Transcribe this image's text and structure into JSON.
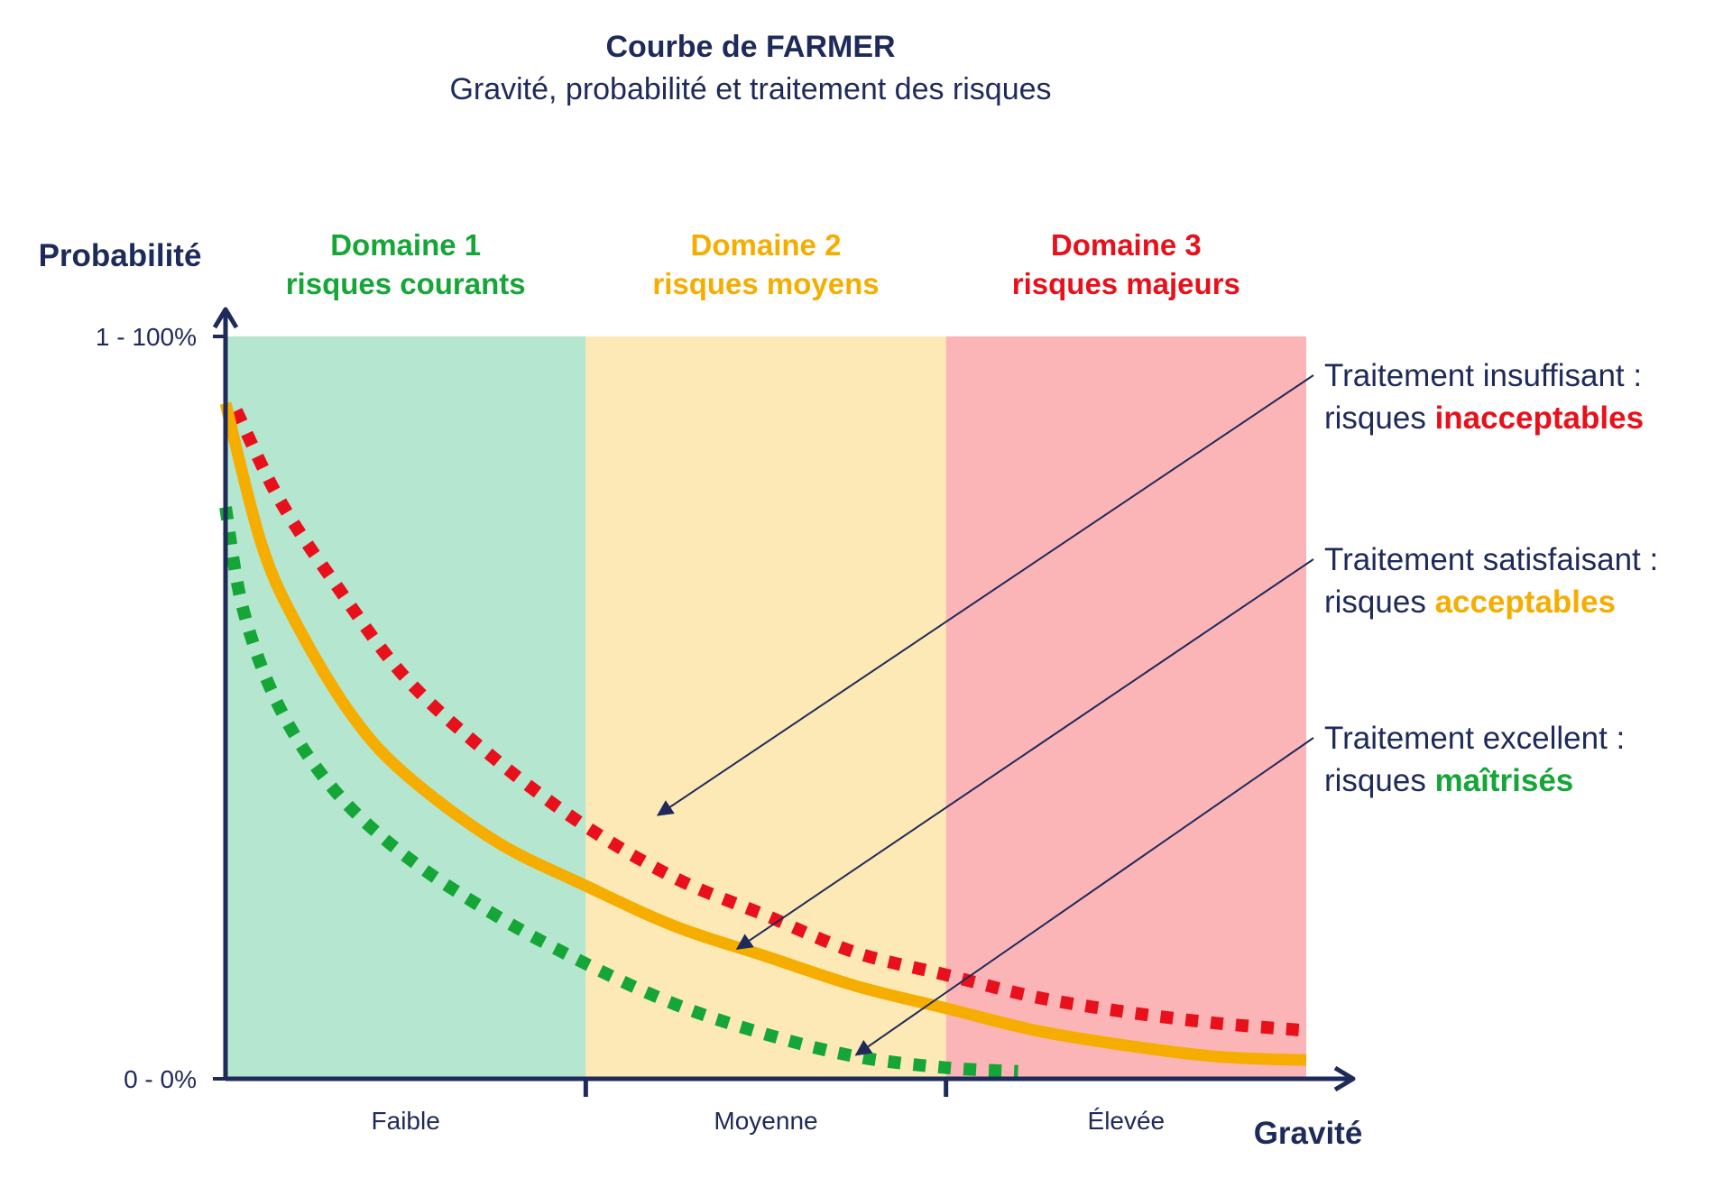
{
  "chart_data": {
    "type": "line",
    "title": "Courbe de FARMER",
    "subtitle": "Gravité, probabilité et traitement des risques",
    "xlabel": "Gravité",
    "ylabel": "Probabilité",
    "ylim": [
      0,
      100
    ],
    "xlim": [
      0,
      3
    ],
    "y_ticks": [
      {
        "value": 100,
        "label": "1 - 100%"
      },
      {
        "value": 0,
        "label": "0 - 0%"
      }
    ],
    "x_categories": [
      "Faible",
      "Moyenne",
      "Élevée"
    ],
    "domains": [
      {
        "line1": "Domaine 1",
        "line2": "risques courants",
        "range": [
          0,
          1
        ],
        "color": "#15a637",
        "fill": "#b5e6cf"
      },
      {
        "line1": "Domaine 2",
        "line2": "risques moyens",
        "range": [
          1,
          2
        ],
        "color": "#f5ad00",
        "fill": "#fde9b5"
      },
      {
        "line1": "Domaine 3",
        "line2": "risques majeurs",
        "range": [
          2,
          3
        ],
        "color": "#e8101b",
        "fill": "#fcb5b7"
      }
    ],
    "series": [
      {
        "color": "#e8101b",
        "style": "dotted",
        "x": [
          0.03,
          0.15,
          0.3,
          0.5,
          0.75,
          1.0,
          1.25,
          1.5,
          1.75,
          2.0,
          2.25,
          2.5,
          2.75,
          3.0
        ],
        "y": [
          90,
          78,
          67,
          54,
          43,
          34,
          27,
          22,
          17,
          14,
          11,
          9,
          7.5,
          6.5
        ]
      },
      {
        "color": "#f5ad00",
        "style": "solid",
        "x": [
          0.0,
          0.1,
          0.2,
          0.35,
          0.5,
          0.75,
          1.0,
          1.25,
          1.5,
          1.75,
          2.0,
          2.25,
          2.5,
          2.75,
          3.0
        ],
        "y": [
          91,
          72,
          61,
          49,
          41,
          32,
          26,
          20.5,
          16.5,
          12.5,
          9.5,
          6.5,
          4.5,
          3,
          2.5
        ]
      },
      {
        "color": "#15a637",
        "style": "dotted",
        "x": [
          0.0,
          0.05,
          0.15,
          0.3,
          0.5,
          0.75,
          1.0,
          1.25,
          1.5,
          1.75,
          2.0,
          2.2
        ],
        "y": [
          77,
          63,
          50,
          39,
          30,
          22,
          15.5,
          10,
          6,
          3,
          1.5,
          1
        ]
      }
    ],
    "annotations": [
      {
        "line1": "Traitement insuffisant :",
        "line2_prefix": "risques ",
        "line2_highlight": "inacceptables",
        "color": "#e8101b",
        "target": {
          "x": 1.2,
          "y": 35.5
        }
      },
      {
        "line1": "Traitement satisfaisant :",
        "line2_prefix": "risques ",
        "line2_highlight": "acceptables",
        "color": "#f5ad00",
        "target": {
          "x": 1.42,
          "y": 17.5
        }
      },
      {
        "line1": "Traitement excellent :",
        "line2_prefix": "risques ",
        "line2_highlight": "maîtrisés",
        "color": "#15a637",
        "target": {
          "x": 1.75,
          "y": 3.2
        }
      }
    ],
    "grid": false,
    "legend": "none"
  }
}
